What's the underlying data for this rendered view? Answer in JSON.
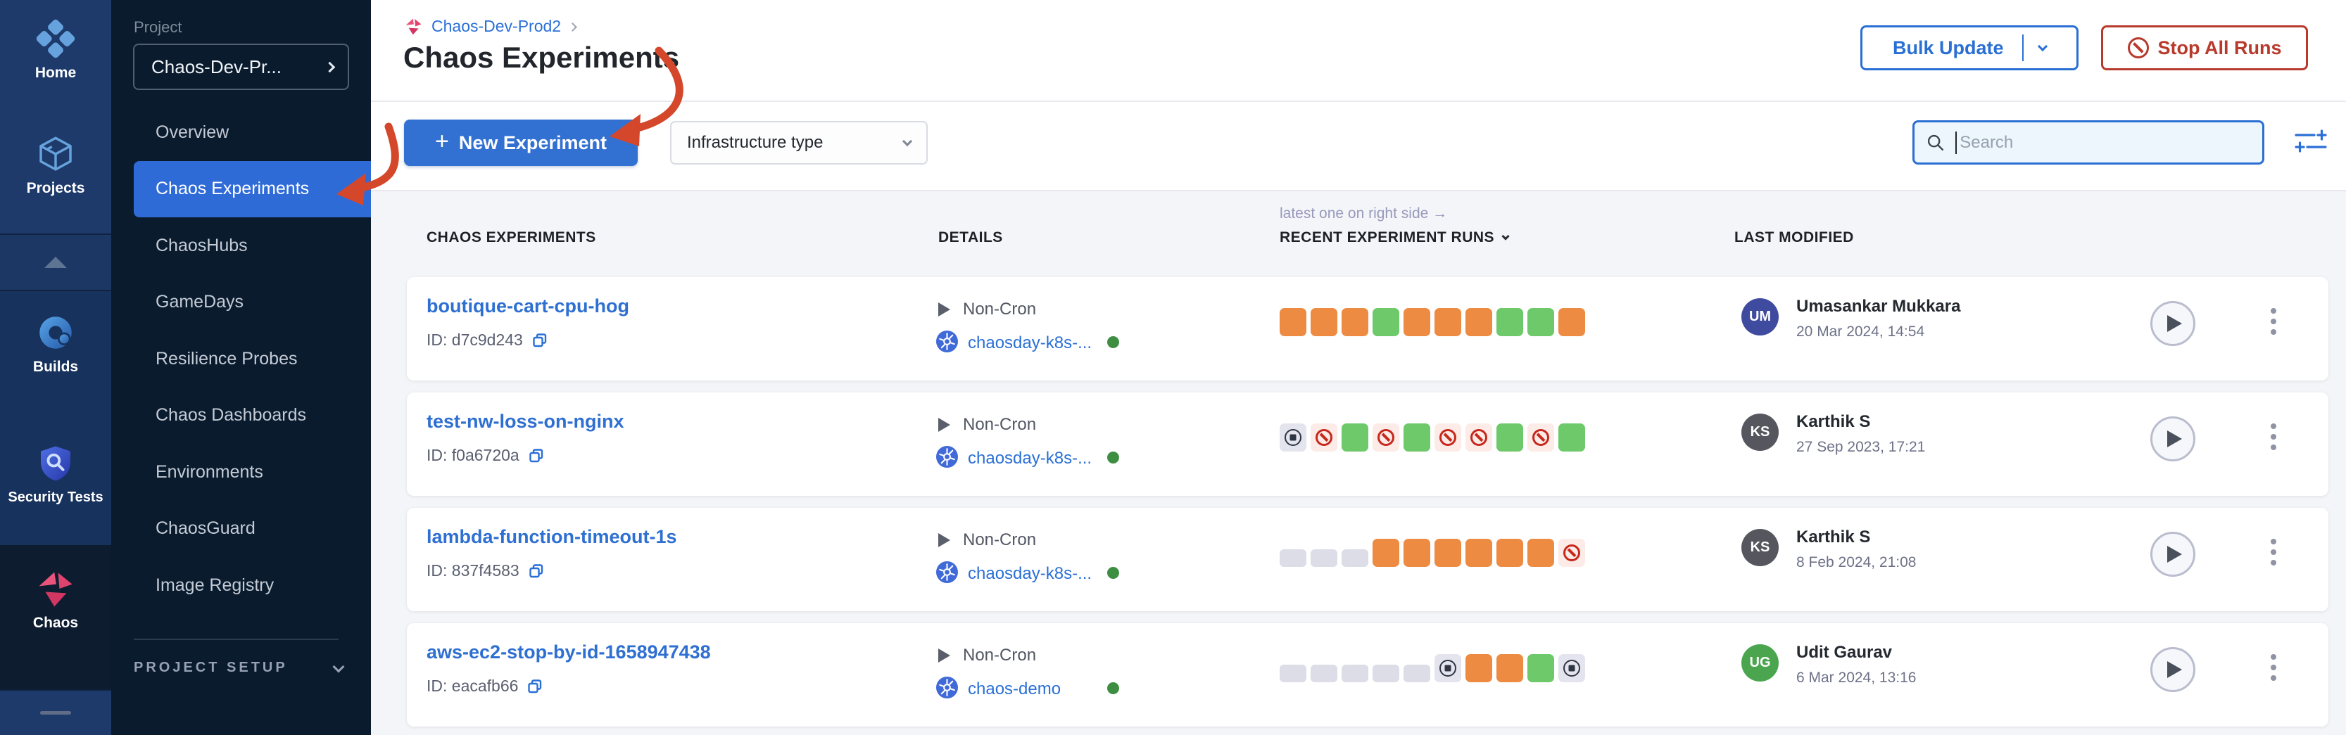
{
  "colors": {
    "accent_blue": "#2a6fd6",
    "primary_button": "#3270d2",
    "danger_red": "#b83a2c",
    "nav_selected": "#2f6bd7",
    "run_green": "#6dc96a",
    "run_orange": "#ee8b42",
    "run_empty": "#dcdde6",
    "abort_red": "#c6281c",
    "annotation_red": "#d4472b"
  },
  "rail": {
    "items": [
      {
        "label": "Home",
        "icon": "home-icon"
      },
      {
        "label": "Projects",
        "icon": "projects-icon"
      },
      {
        "label": "Builds",
        "icon": "builds-icon"
      },
      {
        "label": "Security Tests",
        "icon": "security-tests-icon"
      },
      {
        "label": "Chaos",
        "icon": "chaos-icon",
        "active": true
      }
    ]
  },
  "project_nav": {
    "section_label": "Project",
    "selector_value": "Chaos-Dev-Pr...",
    "items": [
      "Overview",
      "Chaos Experiments",
      "ChaosHubs",
      "GameDays",
      "Resilience Probes",
      "Chaos Dashboards",
      "Environments",
      "ChaosGuard",
      "Image Registry"
    ],
    "active_item": "Chaos Experiments",
    "footer_label": "PROJECT SETUP"
  },
  "header": {
    "breadcrumb": "Chaos-Dev-Prod2",
    "title": "Chaos Experiments",
    "bulk_update_label": "Bulk Update",
    "stop_all_label": "Stop All Runs"
  },
  "toolbar": {
    "new_experiment_label": "New Experiment",
    "infra_filter_label": "Infrastructure type",
    "search_placeholder": "Search"
  },
  "table": {
    "note": "latest one on right side →",
    "columns": [
      "CHAOS EXPERIMENTS",
      "DETAILS",
      "RECENT EXPERIMENT RUNS",
      "LAST MODIFIED"
    ],
    "sorted_column": "RECENT EXPERIMENT RUNS",
    "rows": [
      {
        "name": "boutique-cart-cpu-hog",
        "id_label": "ID: d7c9d243",
        "schedule": "Non-Cron",
        "infra": "chaosday-k8s-...",
        "runs": [
          "orange",
          "orange",
          "orange",
          "green",
          "orange",
          "orange",
          "orange",
          "green",
          "green",
          "orange"
        ],
        "user": "Umasankar Mukkara",
        "initials": "UM",
        "avatar_color": "#3e4b9e",
        "date": "20 Mar 2024, 14:54"
      },
      {
        "name": "test-nw-loss-on-nginx",
        "id_label": "ID: f0a6720a",
        "schedule": "Non-Cron",
        "infra": "chaosday-k8s-...",
        "runs": [
          "stopped",
          "aborted",
          "green",
          "aborted",
          "green",
          "aborted",
          "aborted",
          "green",
          "aborted",
          "green"
        ],
        "user": "Karthik S",
        "initials": "KS",
        "avatar_color": "#56565f",
        "date": "27 Sep 2023, 17:21"
      },
      {
        "name": "lambda-function-timeout-1s",
        "id_label": "ID: 837f4583",
        "schedule": "Non-Cron",
        "infra": "chaosday-k8s-...",
        "runs": [
          "empty",
          "empty",
          "empty",
          "orange",
          "orange",
          "orange",
          "orange",
          "orange",
          "orange",
          "aborted"
        ],
        "user": "Karthik S",
        "initials": "KS",
        "avatar_color": "#56565f",
        "date": "8 Feb 2024, 21:08"
      },
      {
        "name": "aws-ec2-stop-by-id-1658947438",
        "id_label": "ID: eacafb66",
        "schedule": "Non-Cron",
        "infra": "chaos-demo",
        "runs": [
          "empty",
          "empty",
          "empty",
          "empty",
          "empty",
          "stopped",
          "orange",
          "orange",
          "green",
          "stopped"
        ],
        "user": "Udit Gaurav",
        "initials": "UG",
        "avatar_color": "#4aa54e",
        "date": "6 Mar 2024, 13:16"
      }
    ]
  }
}
